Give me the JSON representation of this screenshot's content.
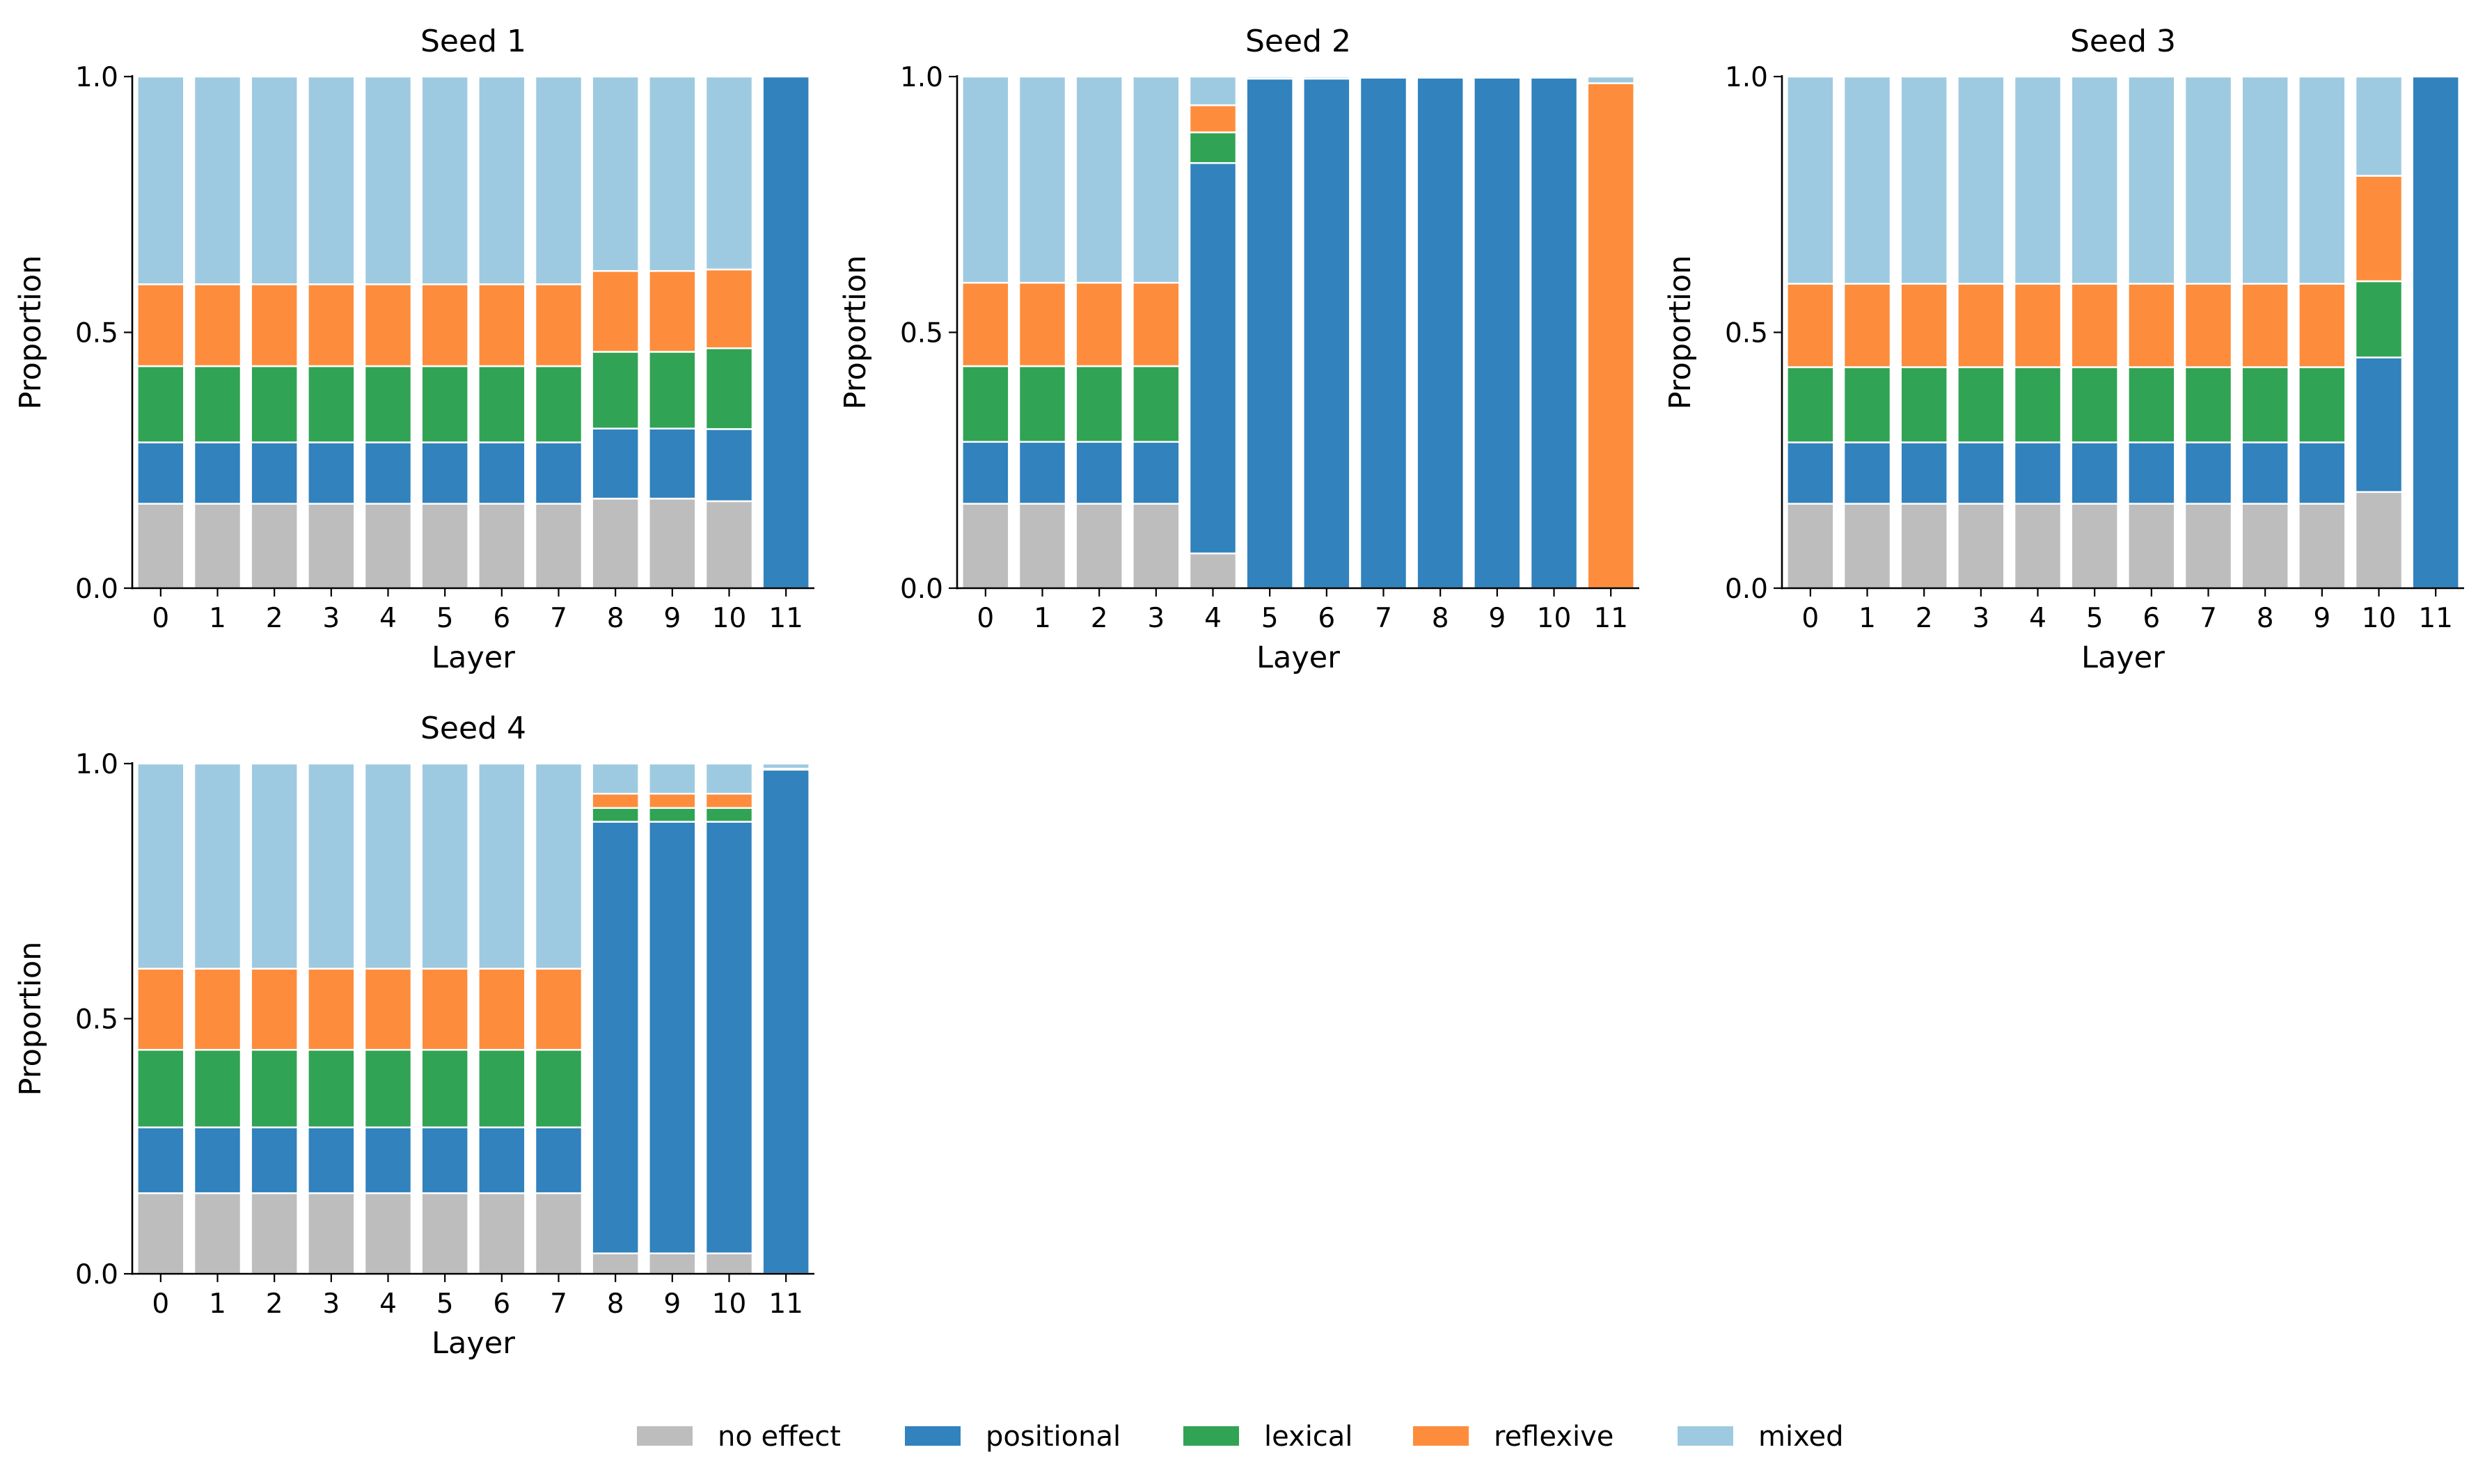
{
  "chart_data": {
    "type": "bar",
    "stacked": true,
    "layout": "2x3 grid of small multiples",
    "xlabel": "Layer",
    "ylabel": "Proportion",
    "ylim": [
      0,
      1
    ],
    "yticks": [
      "0.0",
      "0.5",
      "1.0"
    ],
    "categories": [
      "0",
      "1",
      "2",
      "3",
      "4",
      "5",
      "6",
      "7",
      "8",
      "9",
      "10",
      "11"
    ],
    "legend": {
      "position": "bottom-center",
      "entries": [
        {
          "name": "no effect",
          "color": "#bdbdbd"
        },
        {
          "name": "positional",
          "color": "#3182bd"
        },
        {
          "name": "lexical",
          "color": "#31a354"
        },
        {
          "name": "reflexive",
          "color": "#fd8d3c"
        },
        {
          "name": "mixed",
          "color": "#9ecae1"
        }
      ]
    },
    "panels": [
      {
        "title": "Seed 1",
        "series": [
          {
            "name": "no effect",
            "values": [
              0.165,
              0.165,
              0.165,
              0.165,
              0.165,
              0.165,
              0.165,
              0.165,
              0.175,
              0.175,
              0.17,
              0.0
            ]
          },
          {
            "name": "positional",
            "values": [
              0.12,
              0.12,
              0.12,
              0.12,
              0.12,
              0.12,
              0.12,
              0.12,
              0.137,
              0.137,
              0.141,
              1.0
            ]
          },
          {
            "name": "lexical",
            "values": [
              0.149,
              0.149,
              0.149,
              0.149,
              0.149,
              0.149,
              0.149,
              0.149,
              0.15,
              0.15,
              0.158,
              0.0
            ]
          },
          {
            "name": "reflexive",
            "values": [
              0.16,
              0.16,
              0.16,
              0.16,
              0.16,
              0.16,
              0.16,
              0.16,
              0.158,
              0.158,
              0.154,
              0.0
            ]
          },
          {
            "name": "mixed",
            "values": [
              0.406,
              0.406,
              0.406,
              0.406,
              0.406,
              0.406,
              0.406,
              0.406,
              0.38,
              0.38,
              0.377,
              0.0
            ]
          }
        ]
      },
      {
        "title": "Seed 2",
        "series": [
          {
            "name": "no effect",
            "values": [
              0.165,
              0.165,
              0.165,
              0.165,
              0.068,
              0.0,
              0.0,
              0.0,
              0.0,
              0.0,
              0.0,
              0.0
            ]
          },
          {
            "name": "positional",
            "values": [
              0.121,
              0.121,
              0.121,
              0.121,
              0.763,
              0.996,
              0.996,
              0.998,
              0.998,
              0.998,
              0.998,
              0.0
            ]
          },
          {
            "name": "lexical",
            "values": [
              0.148,
              0.148,
              0.148,
              0.148,
              0.06,
              0.0,
              0.0,
              0.0,
              0.0,
              0.0,
              0.0,
              0.0
            ]
          },
          {
            "name": "reflexive",
            "values": [
              0.163,
              0.163,
              0.163,
              0.163,
              0.053,
              0.0,
              0.0,
              0.0,
              0.0,
              0.0,
              0.0,
              0.987
            ]
          },
          {
            "name": "mixed",
            "values": [
              0.403,
              0.403,
              0.403,
              0.403,
              0.056,
              0.004,
              0.004,
              0.002,
              0.002,
              0.002,
              0.002,
              0.013
            ]
          }
        ]
      },
      {
        "title": "Seed 3",
        "series": [
          {
            "name": "no effect",
            "values": [
              0.165,
              0.165,
              0.165,
              0.165,
              0.165,
              0.165,
              0.165,
              0.165,
              0.165,
              0.165,
              0.188,
              0.0
            ]
          },
          {
            "name": "positional",
            "values": [
              0.12,
              0.12,
              0.12,
              0.12,
              0.12,
              0.12,
              0.12,
              0.12,
              0.12,
              0.12,
              0.263,
              1.0
            ]
          },
          {
            "name": "lexical",
            "values": [
              0.147,
              0.147,
              0.147,
              0.147,
              0.147,
              0.147,
              0.147,
              0.147,
              0.147,
              0.147,
              0.149,
              0.0
            ]
          },
          {
            "name": "reflexive",
            "values": [
              0.163,
              0.163,
              0.163,
              0.163,
              0.163,
              0.163,
              0.163,
              0.163,
              0.163,
              0.163,
              0.206,
              0.0
            ]
          },
          {
            "name": "mixed",
            "values": [
              0.405,
              0.405,
              0.405,
              0.405,
              0.405,
              0.405,
              0.405,
              0.405,
              0.405,
              0.405,
              0.194,
              0.0
            ]
          }
        ]
      },
      {
        "title": "Seed 4",
        "series": [
          {
            "name": "no effect",
            "values": [
              0.158,
              0.158,
              0.158,
              0.158,
              0.158,
              0.158,
              0.158,
              0.158,
              0.04,
              0.04,
              0.04,
              0.0
            ]
          },
          {
            "name": "positional",
            "values": [
              0.129,
              0.129,
              0.129,
              0.129,
              0.129,
              0.129,
              0.129,
              0.129,
              0.846,
              0.846,
              0.846,
              0.988
            ]
          },
          {
            "name": "lexical",
            "values": [
              0.152,
              0.152,
              0.152,
              0.152,
              0.152,
              0.152,
              0.152,
              0.152,
              0.027,
              0.027,
              0.027,
              0.002
            ]
          },
          {
            "name": "reflexive",
            "values": [
              0.159,
              0.159,
              0.159,
              0.159,
              0.159,
              0.159,
              0.159,
              0.159,
              0.028,
              0.028,
              0.028,
              0.0
            ]
          },
          {
            "name": "mixed",
            "values": [
              0.402,
              0.402,
              0.402,
              0.402,
              0.402,
              0.402,
              0.402,
              0.402,
              0.059,
              0.059,
              0.059,
              0.01
            ]
          }
        ]
      }
    ]
  }
}
